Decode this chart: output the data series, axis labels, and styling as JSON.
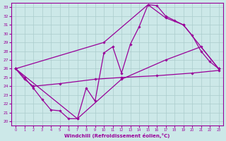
{
  "background_color": "#cce8e8",
  "line_color": "#990099",
  "grid_color": "#aacccc",
  "xlabel": "Windchill (Refroidissement éolien,°C)",
  "ylabel_ticks": [
    20,
    21,
    22,
    23,
    24,
    25,
    26,
    27,
    28,
    29,
    30,
    31,
    32,
    33
  ],
  "xticks": [
    0,
    1,
    2,
    3,
    4,
    5,
    6,
    7,
    8,
    9,
    10,
    11,
    12,
    13,
    14,
    15,
    16,
    17,
    18,
    19,
    20,
    21,
    22,
    23
  ],
  "ylim": [
    19.5,
    33.5
  ],
  "xlim": [
    -0.5,
    23.5
  ],
  "curve1": [
    [
      0,
      26.0
    ],
    [
      1,
      25.0
    ],
    [
      2,
      23.8
    ],
    [
      3,
      22.5
    ],
    [
      4,
      21.3
    ],
    [
      5,
      21.2
    ],
    [
      6,
      20.3
    ],
    [
      7,
      20.3
    ],
    [
      8,
      23.8
    ],
    [
      9,
      22.3
    ],
    [
      10,
      27.8
    ],
    [
      11,
      28.5
    ],
    [
      12,
      25.5
    ],
    [
      13,
      28.8
    ],
    [
      14,
      30.8
    ],
    [
      15,
      33.3
    ],
    [
      16,
      33.2
    ],
    [
      17,
      32.0
    ],
    [
      18,
      31.5
    ],
    [
      19,
      31.0
    ],
    [
      20,
      29.8
    ],
    [
      21,
      28.0
    ],
    [
      22,
      26.8
    ],
    [
      23,
      26.0
    ]
  ],
  "curve2": [
    [
      0,
      26.0
    ],
    [
      1,
      24.8
    ],
    [
      2,
      24.0
    ],
    [
      5,
      24.3
    ],
    [
      9,
      24.8
    ],
    [
      12,
      25.0
    ],
    [
      16,
      25.2
    ],
    [
      20,
      25.5
    ],
    [
      23,
      25.8
    ]
  ],
  "curve3": [
    [
      0,
      26.0
    ],
    [
      10,
      29.0
    ],
    [
      15,
      33.3
    ],
    [
      17,
      31.8
    ],
    [
      19,
      31.0
    ],
    [
      23,
      26.0
    ]
  ],
  "curve4": [
    [
      0,
      26.0
    ],
    [
      7,
      20.3
    ],
    [
      12,
      24.8
    ],
    [
      17,
      27.0
    ],
    [
      21,
      28.5
    ],
    [
      23,
      26.0
    ]
  ]
}
